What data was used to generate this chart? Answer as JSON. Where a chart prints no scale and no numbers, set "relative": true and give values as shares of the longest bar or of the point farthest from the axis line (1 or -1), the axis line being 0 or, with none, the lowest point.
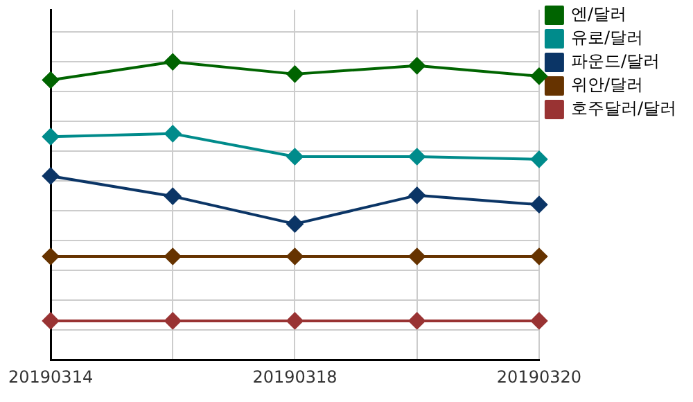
{
  "chart_data": {
    "type": "line",
    "relative": true,
    "grid": true,
    "legend": "top right",
    "marker": "diamond",
    "line_style": "solid",
    "categories": [
      "20190314",
      null,
      "20190318",
      null,
      "20190320"
    ],
    "series": [
      {
        "name": "엔/달러",
        "color": "#006400",
        "values": [
          0.939,
          1,
          0.959,
          0.987,
          0.952
        ]
      },
      {
        "name": "유로/달러",
        "color": "#008b8b",
        "values": [
          0.749,
          0.759,
          0.682,
          0.682,
          0.673
        ]
      },
      {
        "name": "파운드/달러",
        "color": "#0b3566",
        "values": [
          0.617,
          0.549,
          0.456,
          0.552,
          0.521
        ]
      },
      {
        "name": "위안/달러",
        "color": "#663300",
        "values": [
          0.347,
          0.347,
          0.347,
          0.347,
          0.347
        ]
      },
      {
        "name": "호주달러/달러",
        "color": "#993333",
        "values": [
          0.131,
          0.131,
          0.131,
          0.131,
          0.131
        ]
      }
    ]
  }
}
